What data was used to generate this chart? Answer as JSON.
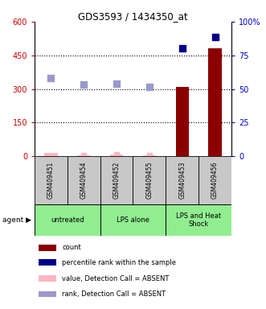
{
  "title": "GDS3593 / 1434350_at",
  "samples": [
    "GSM409451",
    "GSM409454",
    "GSM409452",
    "GSM409455",
    "GSM409453",
    "GSM409456"
  ],
  "groups": [
    {
      "label": "untreated",
      "span": [
        0,
        1
      ]
    },
    {
      "label": "LPS alone",
      "span": [
        2,
        3
      ]
    },
    {
      "label": "LPS and Heat\nShock",
      "span": [
        4,
        5
      ]
    }
  ],
  "group_color": "#90EE90",
  "count_values": [
    15,
    5,
    7,
    4,
    310,
    480
  ],
  "count_present": [
    false,
    false,
    false,
    false,
    true,
    true
  ],
  "count_color_present": "#8B0000",
  "count_color_absent": "#FFB6C1",
  "rank_values_present": [
    480,
    530
  ],
  "rank_present_indices": [
    4,
    5
  ],
  "rank_color_present": "#00008B",
  "rank_absent_values": [
    350,
    320,
    322,
    308
  ],
  "rank_absent_indices": [
    0,
    1,
    2,
    3
  ],
  "rank_color_absent": "#9999CC",
  "value_absent_values": [
    5,
    7,
    4
  ],
  "value_absent_indices": [
    1,
    2,
    3
  ],
  "value_color_absent": "#FFB6C1",
  "ylim_left": [
    0,
    600
  ],
  "ylim_right": [
    0,
    100
  ],
  "yticks_left": [
    0,
    150,
    300,
    450,
    600
  ],
  "yticks_right": [
    0,
    25,
    50,
    75,
    100
  ],
  "ytick_labels_left": [
    "0",
    "150",
    "300",
    "450",
    "600"
  ],
  "ytick_labels_right": [
    "0",
    "25",
    "50",
    "75",
    "100%"
  ],
  "left_yaxis_color": "#CC0000",
  "right_yaxis_color": "#0000CC",
  "background_color": "#FFFFFF",
  "sample_bg_color": "#C8C8C8",
  "agent_label": "agent",
  "legend_items": [
    {
      "color": "#8B0000",
      "label": "count"
    },
    {
      "color": "#00008B",
      "label": "percentile rank within the sample"
    },
    {
      "color": "#FFB6C1",
      "label": "value, Detection Call = ABSENT"
    },
    {
      "color": "#9999CC",
      "label": "rank, Detection Call = ABSENT"
    }
  ]
}
